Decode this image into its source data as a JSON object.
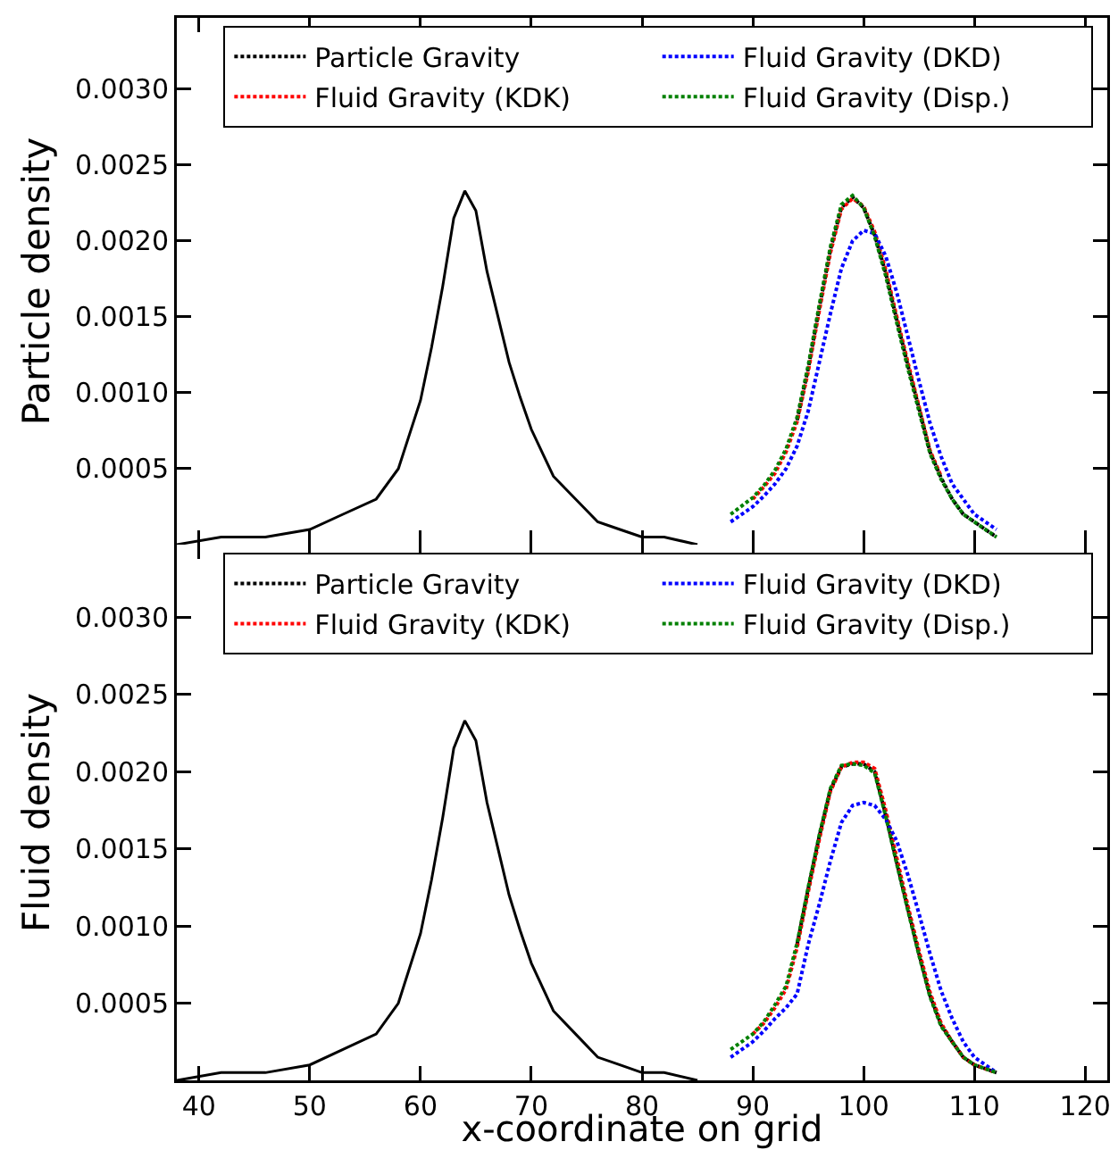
{
  "chart_data": [
    {
      "type": "line",
      "ylabel": "Particle density",
      "xlim": [
        38,
        122
      ],
      "xticks": [
        40,
        50,
        60,
        70,
        80,
        90,
        100,
        110,
        120
      ],
      "ylim": [
        0,
        0.00347
      ],
      "yticks": [
        {
          "value": 0.0005,
          "label": "0.0005"
        },
        {
          "value": 0.001,
          "label": "0.0010"
        },
        {
          "value": 0.0015,
          "label": "0.0015"
        },
        {
          "value": 0.002,
          "label": "0.0020"
        },
        {
          "value": 0.0025,
          "label": "0.0025"
        },
        {
          "value": 0.003,
          "label": "0.0030"
        }
      ],
      "tick_labels": "y",
      "legend": "top right",
      "grid": false,
      "series": [
        {
          "color": "#000000",
          "line_style": "solid",
          "x": [
            38,
            42,
            46,
            50,
            53,
            56,
            58,
            60,
            61,
            62,
            63,
            64,
            65,
            66,
            67,
            68,
            69,
            70,
            72,
            74,
            76,
            78,
            80,
            82,
            85
          ],
          "values": [
            0,
            5e-05,
            5e-05,
            0.0001,
            0.0002,
            0.0003,
            0.0005,
            0.00095,
            0.0013,
            0.0017,
            0.00215,
            0.00233,
            0.0022,
            0.0018,
            0.0015,
            0.0012,
            0.00097,
            0.00076,
            0.00045,
            0.0003,
            0.00015,
            0.0001,
            5e-05,
            5e-05,
            0
          ]
        },
        {
          "name": "Particle Gravity",
          "color": "#000000",
          "line_style": "dotted",
          "x": [
            94,
            95,
            96,
            97,
            98,
            99,
            100,
            101,
            102,
            103,
            104,
            105,
            106,
            107,
            108,
            109,
            110,
            112
          ],
          "values": [
            0.00082,
            0.00116,
            0.00156,
            0.00194,
            0.00222,
            0.00229,
            0.00222,
            0.00204,
            0.00179,
            0.00148,
            0.00118,
            0.0009,
            0.00061,
            0.00044,
            0.0003,
            0.0002,
            0.00015,
            5e-05
          ]
        },
        {
          "name": "Fluid Gravity (KDK)",
          "color": "#ff0000",
          "line_style": "dotted",
          "x": [
            90,
            91,
            92,
            93,
            94,
            95,
            96,
            97,
            98,
            99,
            100,
            101,
            102,
            103,
            104,
            105,
            106,
            107
          ],
          "values": [
            0.0003,
            0.00038,
            0.00047,
            0.00061,
            0.00081,
            0.00114,
            0.00154,
            0.00192,
            0.00221,
            0.00228,
            0.00223,
            0.00206,
            0.00181,
            0.0015,
            0.0012,
            0.00091,
            0.00062,
            0.00045
          ]
        },
        {
          "name": "Fluid Gravity (DKD)",
          "color": "#0000ff",
          "line_style": "dotted",
          "x": [
            88,
            90,
            91,
            92,
            93,
            94,
            95,
            96,
            97,
            98,
            99,
            100,
            101,
            102,
            103,
            104,
            105,
            106,
            107,
            108,
            109,
            110,
            112
          ],
          "values": [
            0.00015,
            0.00025,
            0.00032,
            0.0004,
            0.0005,
            0.00065,
            0.00088,
            0.0012,
            0.00152,
            0.00182,
            0.002,
            0.00207,
            0.00205,
            0.0019,
            0.00166,
            0.00137,
            0.00108,
            0.0008,
            0.00058,
            0.0004,
            0.0003,
            0.0002,
            0.0001
          ]
        },
        {
          "name": "Fluid Gravity (Disp.)",
          "color": "#008000",
          "line_style": "dotted",
          "x": [
            88,
            90,
            91,
            92,
            93,
            94,
            95,
            96,
            97,
            98,
            99,
            100,
            101,
            102,
            103,
            104,
            105,
            106,
            107,
            108,
            109,
            110,
            112
          ],
          "values": [
            0.0002,
            0.00031,
            0.00039,
            0.00049,
            0.00063,
            0.00084,
            0.00118,
            0.00158,
            0.00196,
            0.00224,
            0.0023,
            0.00222,
            0.00203,
            0.00177,
            0.00146,
            0.00116,
            0.00088,
            0.0006,
            0.00043,
            0.0003,
            0.0002,
            0.00015,
            5e-05
          ]
        }
      ]
    },
    {
      "type": "line",
      "xlabel": "x-coordinate on grid",
      "ylabel": "Fluid density",
      "xlim": [
        38,
        122
      ],
      "xticks": [
        40,
        50,
        60,
        70,
        80,
        90,
        100,
        110,
        120
      ],
      "ylim": [
        0,
        0.00347
      ],
      "yticks": [
        {
          "value": 0.0005,
          "label": "0.0005"
        },
        {
          "value": 0.001,
          "label": "0.0010"
        },
        {
          "value": 0.0015,
          "label": "0.0015"
        },
        {
          "value": 0.002,
          "label": "0.0020"
        },
        {
          "value": 0.0025,
          "label": "0.0025"
        },
        {
          "value": 0.003,
          "label": "0.0030"
        }
      ],
      "legend": "top right",
      "grid": false,
      "series": [
        {
          "color": "#000000",
          "line_style": "solid",
          "x": [
            38,
            42,
            46,
            50,
            53,
            56,
            58,
            60,
            61,
            62,
            63,
            64,
            65,
            66,
            67,
            68,
            69,
            70,
            72,
            74,
            76,
            78,
            80,
            82,
            85
          ],
          "values": [
            0,
            5e-05,
            5e-05,
            0.0001,
            0.0002,
            0.0003,
            0.0005,
            0.00095,
            0.0013,
            0.0017,
            0.00215,
            0.00233,
            0.0022,
            0.0018,
            0.0015,
            0.0012,
            0.00097,
            0.00076,
            0.00045,
            0.0003,
            0.00015,
            0.0001,
            5e-05,
            5e-05,
            0
          ]
        },
        {
          "name": "Particle Gravity",
          "color": "#000000",
          "line_style": "dotted",
          "x": [
            94,
            95,
            96,
            97,
            98,
            99,
            100,
            101,
            102,
            103,
            104,
            105,
            106,
            107,
            108,
            109,
            110,
            112
          ],
          "values": [
            0.00088,
            0.00124,
            0.00158,
            0.00188,
            0.00203,
            0.00205,
            0.00205,
            0.002,
            0.00172,
            0.00141,
            0.00111,
            0.00082,
            0.00055,
            0.00036,
            0.00025,
            0.00015,
            0.0001,
            5e-05
          ]
        },
        {
          "name": "Fluid Gravity (KDK)",
          "color": "#ff0000",
          "line_style": "dotted",
          "x": [
            90,
            91,
            92,
            93,
            94,
            95,
            96,
            97,
            98,
            99,
            100,
            101,
            102,
            103,
            104,
            105,
            106,
            107,
            108,
            109,
            110,
            112
          ],
          "values": [
            0.0003,
            0.00037,
            0.00047,
            0.00059,
            0.00086,
            0.00122,
            0.00156,
            0.00187,
            0.00203,
            0.00206,
            0.00206,
            0.00202,
            0.00175,
            0.00144,
            0.00113,
            0.00084,
            0.00057,
            0.00037,
            0.00025,
            0.00015,
            0.0001,
            5e-05
          ]
        },
        {
          "name": "Fluid Gravity (DKD)",
          "color": "#0000ff",
          "line_style": "dotted",
          "x": [
            88,
            90,
            91,
            92,
            93,
            94,
            95,
            96,
            97,
            98,
            99,
            100,
            101,
            102,
            103,
            104,
            105,
            106,
            107,
            108,
            109,
            110,
            112
          ],
          "values": [
            0.00015,
            0.00025,
            0.00032,
            0.0004,
            0.00047,
            0.00056,
            0.00088,
            0.00114,
            0.00142,
            0.00167,
            0.00178,
            0.0018,
            0.00178,
            0.00169,
            0.00155,
            0.00133,
            0.00108,
            0.00082,
            0.00058,
            0.0004,
            0.00025,
            0.00015,
            5e-05
          ]
        },
        {
          "name": "Fluid Gravity (Disp.)",
          "color": "#008000",
          "line_style": "dotted",
          "x": [
            88,
            90,
            91,
            92,
            93,
            94,
            95,
            96,
            97,
            98,
            99,
            100,
            101,
            102,
            103,
            104,
            105,
            106,
            107,
            108,
            109,
            110,
            112
          ],
          "values": [
            0.0002,
            0.0003,
            0.00038,
            0.00049,
            0.00061,
            0.00089,
            0.00125,
            0.00159,
            0.00189,
            0.00204,
            0.00205,
            0.00204,
            0.00199,
            0.00171,
            0.0014,
            0.0011,
            0.00081,
            0.00054,
            0.00035,
            0.00025,
            0.00015,
            0.0001,
            5e-05
          ]
        }
      ]
    }
  ]
}
